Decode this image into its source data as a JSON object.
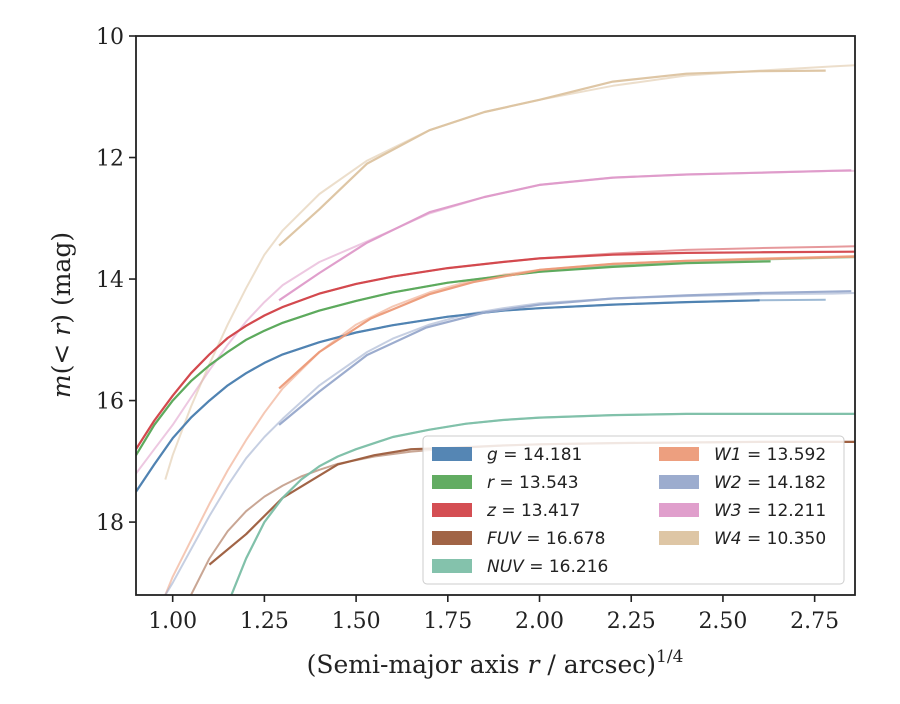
{
  "chart_data": {
    "type": "line",
    "xlabel": "(Semi-major axis r / arcsec)",
    "xlabel_parts": {
      "pre": "(Semi-major axis ",
      "var": "r",
      "post": " / arcsec)",
      "sup": "1/4"
    },
    "ylabel": "m(< r) (mag)",
    "ylabel_parts": {
      "var": "m",
      "mid": "(< ",
      "var2": "r",
      "post": ") (mag)"
    },
    "xlim": [
      0.9,
      2.86
    ],
    "ylim": [
      19.2,
      10.0
    ],
    "y_inverted": true,
    "grid": false,
    "legend_position": "lower-right",
    "x_ticks": [
      1.0,
      1.25,
      1.5,
      1.75,
      2.0,
      2.25,
      2.5,
      2.75
    ],
    "x_tick_labels": [
      "1.00",
      "1.25",
      "1.50",
      "1.75",
      "2.00",
      "2.25",
      "2.50",
      "2.75"
    ],
    "y_ticks": [
      10,
      12,
      14,
      16,
      18
    ],
    "y_tick_labels": [
      "10",
      "12",
      "14",
      "16",
      "18"
    ],
    "series": [
      {
        "name": "g",
        "label_var": "g",
        "label_value": "= 14.181",
        "color": "#4c7fb0",
        "model": {
          "x": [
            0.9,
            0.95,
            1.0,
            1.05,
            1.1,
            1.15,
            1.2,
            1.25,
            1.3,
            1.4,
            1.5,
            1.6,
            1.75,
            1.9,
            2.0,
            2.2,
            2.4,
            2.6,
            2.78
          ],
          "y": [
            17.5,
            17.05,
            16.62,
            16.28,
            16.0,
            15.75,
            15.55,
            15.38,
            15.24,
            15.04,
            14.88,
            14.76,
            14.62,
            14.52,
            14.48,
            14.42,
            14.38,
            14.35,
            14.34
          ]
        },
        "observed": {
          "x": [
            0.9,
            0.95,
            1.0,
            1.05,
            1.1,
            1.15,
            1.2,
            1.25,
            1.3,
            1.4,
            1.5,
            1.6,
            1.75,
            1.9,
            2.0,
            2.2,
            2.4,
            2.6
          ],
          "y": [
            17.5,
            17.05,
            16.62,
            16.28,
            16.0,
            15.75,
            15.55,
            15.38,
            15.24,
            15.04,
            14.88,
            14.76,
            14.62,
            14.52,
            14.48,
            14.42,
            14.38,
            14.35
          ]
        }
      },
      {
        "name": "r",
        "label_var": "r",
        "label_value": "= 13.543",
        "color": "#5aa85a",
        "model": {
          "x": [
            0.9,
            0.95,
            1.0,
            1.05,
            1.1,
            1.15,
            1.2,
            1.25,
            1.3,
            1.4,
            1.5,
            1.6,
            1.75,
            1.9,
            2.0,
            2.2,
            2.4,
            2.6,
            2.8,
            2.86
          ],
          "y": [
            16.9,
            16.4,
            16.0,
            15.68,
            15.42,
            15.2,
            15.0,
            14.85,
            14.72,
            14.52,
            14.36,
            14.22,
            14.06,
            13.95,
            13.88,
            13.78,
            13.72,
            13.68,
            13.65,
            13.64
          ]
        },
        "observed": {
          "x": [
            0.9,
            0.95,
            1.0,
            1.05,
            1.1,
            1.15,
            1.2,
            1.25,
            1.3,
            1.4,
            1.5,
            1.6,
            1.75,
            1.9,
            2.0,
            2.2,
            2.4,
            2.63
          ],
          "y": [
            16.9,
            16.4,
            16.0,
            15.68,
            15.42,
            15.2,
            15.0,
            14.85,
            14.72,
            14.52,
            14.36,
            14.22,
            14.06,
            13.95,
            13.88,
            13.8,
            13.74,
            13.71
          ]
        }
      },
      {
        "name": "z",
        "label_var": "z",
        "label_value": "= 13.417",
        "color": "#d2454a",
        "model": {
          "x": [
            0.9,
            0.95,
            1.0,
            1.05,
            1.1,
            1.15,
            1.2,
            1.25,
            1.3,
            1.4,
            1.5,
            1.6,
            1.75,
            1.9,
            2.0,
            2.2,
            2.4,
            2.6,
            2.8,
            2.86
          ],
          "y": [
            16.8,
            16.33,
            15.92,
            15.55,
            15.24,
            14.97,
            14.77,
            14.6,
            14.46,
            14.24,
            14.08,
            13.96,
            13.82,
            13.72,
            13.66,
            13.58,
            13.52,
            13.49,
            13.47,
            13.46
          ]
        },
        "observed": {
          "x": [
            0.9,
            0.95,
            1.0,
            1.05,
            1.1,
            1.15,
            1.2,
            1.25,
            1.3,
            1.4,
            1.5,
            1.6,
            1.75,
            1.9,
            2.0,
            2.2,
            2.4,
            2.6,
            2.86
          ],
          "y": [
            16.8,
            16.33,
            15.92,
            15.55,
            15.24,
            14.97,
            14.77,
            14.6,
            14.46,
            14.24,
            14.08,
            13.96,
            13.82,
            13.72,
            13.66,
            13.6,
            13.57,
            13.56,
            13.55
          ]
        }
      },
      {
        "name": "FUV",
        "label_var": "FUV",
        "label_value": "= 16.678",
        "color": "#9c5c3c",
        "model": {
          "x": [
            1.05,
            1.1,
            1.15,
            1.2,
            1.25,
            1.3,
            1.35,
            1.4,
            1.45,
            1.55,
            1.65,
            1.75,
            1.9,
            2.0,
            2.2,
            2.4,
            2.6,
            2.8,
            2.86
          ],
          "y": [
            19.2,
            18.6,
            18.15,
            17.82,
            17.58,
            17.4,
            17.25,
            17.14,
            17.04,
            16.92,
            16.84,
            16.79,
            16.74,
            16.72,
            16.7,
            16.69,
            16.68,
            16.68,
            16.68
          ]
        },
        "observed": {
          "x": [
            1.1,
            1.2,
            1.3,
            1.45,
            1.55,
            1.65,
            1.75,
            1.9,
            2.0,
            2.2,
            2.4,
            2.6,
            2.8,
            2.86
          ],
          "y": [
            18.7,
            18.2,
            17.6,
            17.05,
            16.9,
            16.8,
            16.78,
            16.74,
            16.72,
            16.7,
            16.69,
            16.68,
            16.68,
            16.68
          ]
        }
      },
      {
        "name": "NUV",
        "label_var": "NUV",
        "label_value": "= 16.216",
        "color": "#7dbfa8",
        "model": {
          "x": [
            1.16,
            1.2,
            1.25,
            1.3,
            1.35,
            1.4,
            1.45,
            1.5,
            1.6,
            1.7,
            1.8,
            1.9,
            2.0,
            2.2,
            2.4,
            2.6,
            2.8,
            2.86
          ],
          "y": [
            19.2,
            18.6,
            18.0,
            17.6,
            17.3,
            17.08,
            16.92,
            16.8,
            16.6,
            16.48,
            16.38,
            16.32,
            16.28,
            16.24,
            16.22,
            16.22,
            16.22,
            16.22
          ]
        },
        "observed": {
          "x": [
            1.16,
            1.2,
            1.25,
            1.3,
            1.35,
            1.4,
            1.45,
            1.5,
            1.6,
            1.7,
            1.8,
            1.9,
            2.0,
            2.2,
            2.4,
            2.6,
            2.8,
            2.86
          ],
          "y": [
            19.2,
            18.6,
            18.0,
            17.6,
            17.3,
            17.08,
            16.92,
            16.8,
            16.6,
            16.48,
            16.38,
            16.32,
            16.28,
            16.24,
            16.22,
            16.22,
            16.22,
            16.22
          ]
        }
      },
      {
        "name": "W1",
        "label_var": "W1",
        "label_value": "= 13.592",
        "color": "#ec9a78",
        "model": {
          "x": [
            0.98,
            1.0,
            1.05,
            1.1,
            1.15,
            1.2,
            1.25,
            1.3,
            1.4,
            1.5,
            1.6,
            1.7,
            1.8,
            1.9,
            2.0,
            2.2,
            2.4,
            2.6,
            2.8,
            2.86
          ],
          "y": [
            19.2,
            18.9,
            18.3,
            17.7,
            17.15,
            16.65,
            16.2,
            15.8,
            15.2,
            14.75,
            14.45,
            14.22,
            14.05,
            13.93,
            13.85,
            13.75,
            13.7,
            13.66,
            13.63,
            13.62
          ]
        },
        "observed": {
          "x": [
            1.29,
            1.4,
            1.54,
            1.7,
            1.82,
            2.0,
            2.2,
            2.4,
            2.6,
            2.86
          ],
          "y": [
            15.8,
            15.2,
            14.65,
            14.25,
            14.05,
            13.85,
            13.75,
            13.7,
            13.67,
            13.63
          ]
        }
      },
      {
        "name": "W2",
        "label_var": "W2",
        "label_value": "= 14.182",
        "color": "#97a8cb",
        "model": {
          "x": [
            0.98,
            1.0,
            1.05,
            1.1,
            1.15,
            1.2,
            1.25,
            1.3,
            1.4,
            1.53,
            1.6,
            1.7,
            1.8,
            1.9,
            2.0,
            2.2,
            2.4,
            2.6,
            2.8,
            2.86
          ],
          "y": [
            19.2,
            19.0,
            18.45,
            17.9,
            17.4,
            16.95,
            16.6,
            16.3,
            15.75,
            15.2,
            14.98,
            14.75,
            14.58,
            14.48,
            14.4,
            14.32,
            14.28,
            14.25,
            14.24,
            14.23
          ]
        },
        "observed": {
          "x": [
            1.29,
            1.4,
            1.53,
            1.69,
            1.85,
            2.0,
            2.2,
            2.4,
            2.6,
            2.85
          ],
          "y": [
            16.4,
            15.85,
            15.25,
            14.8,
            14.55,
            14.42,
            14.32,
            14.27,
            14.23,
            14.2
          ]
        }
      },
      {
        "name": "W3",
        "label_var": "W3",
        "label_value": "= 12.211",
        "color": "#de9ac9",
        "model": {
          "x": [
            0.9,
            0.95,
            1.0,
            1.05,
            1.1,
            1.15,
            1.2,
            1.25,
            1.3,
            1.4,
            1.53,
            1.7,
            1.85,
            2.0,
            2.2,
            2.4,
            2.6,
            2.8,
            2.86
          ],
          "y": [
            17.2,
            16.8,
            16.4,
            15.95,
            15.5,
            15.08,
            14.7,
            14.38,
            14.1,
            13.72,
            13.38,
            12.92,
            12.65,
            12.45,
            12.33,
            12.28,
            12.25,
            12.22,
            12.22
          ]
        },
        "observed": {
          "x": [
            1.29,
            1.4,
            1.53,
            1.7,
            1.85,
            2.0,
            2.2,
            2.4,
            2.6,
            2.85
          ],
          "y": [
            14.35,
            13.9,
            13.4,
            12.9,
            12.65,
            12.45,
            12.33,
            12.28,
            12.25,
            12.21
          ]
        }
      },
      {
        "name": "W4",
        "label_var": "W4",
        "label_value": "= 10.350",
        "color": "#dcc3a0",
        "model": {
          "x": [
            0.98,
            1.0,
            1.05,
            1.1,
            1.15,
            1.2,
            1.25,
            1.3,
            1.4,
            1.53,
            1.7,
            1.85,
            2.0,
            2.2,
            2.4,
            2.6,
            2.8,
            2.86
          ],
          "y": [
            17.3,
            16.9,
            16.1,
            15.4,
            14.75,
            14.15,
            13.6,
            13.2,
            12.6,
            12.05,
            11.55,
            11.25,
            11.05,
            10.82,
            10.65,
            10.57,
            10.5,
            10.48
          ]
        },
        "observed": {
          "x": [
            1.29,
            1.4,
            1.53,
            1.7,
            1.85,
            2.0,
            2.2,
            2.4,
            2.6,
            2.78
          ],
          "y": [
            13.45,
            12.85,
            12.1,
            11.55,
            11.25,
            11.05,
            10.75,
            10.62,
            10.58,
            10.57
          ]
        }
      }
    ]
  }
}
